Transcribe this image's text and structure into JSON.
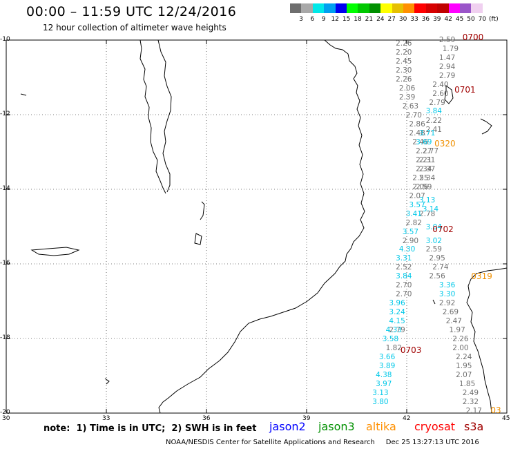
{
  "title": "00:00 – 11:59 UTC 12/24/2016",
  "subtitle": "12 hour collection of altimeter wave heights",
  "colorbar": {
    "colors": [
      "#6e6e6e",
      "#a8a8a8",
      "#00e8e8",
      "#00a0f0",
      "#0000f0",
      "#00ff00",
      "#00c800",
      "#009000",
      "#ffff00",
      "#e6c000",
      "#ff9000",
      "#ff0000",
      "#d60000",
      "#c00000",
      "#ff00ff",
      "#9a55c9",
      "#f0d0f0",
      "#ffffff"
    ],
    "labels": [
      "3",
      "6",
      "9",
      "12",
      "15",
      "18",
      "21",
      "24",
      "27",
      "30",
      "33",
      "36",
      "39",
      "42",
      "45",
      "50",
      "70",
      "(ft)"
    ]
  },
  "axes": {
    "lat_labels": [
      "-10",
      "-12",
      "-14",
      "-16",
      "-18",
      "-20"
    ],
    "lon_labels": [
      "30",
      "33",
      "36",
      "39",
      "42",
      "45"
    ]
  },
  "wave_values": {
    "jason3_column_a": [
      {
        "lat": -10.1,
        "lon": 41.96,
        "v": "2.26"
      },
      {
        "lat": -10.34,
        "lon": 41.96,
        "v": "2.20"
      },
      {
        "lat": -10.58,
        "lon": 41.96,
        "v": "2.45"
      },
      {
        "lat": -10.82,
        "lon": 41.96,
        "v": "2.30"
      },
      {
        "lat": -11.06,
        "lon": 41.96,
        "v": "2.26"
      },
      {
        "lat": -11.3,
        "lon": 42.06,
        "v": "2.06"
      },
      {
        "lat": -11.54,
        "lon": 42.06,
        "v": "2.39"
      },
      {
        "lat": -11.78,
        "lon": 42.16,
        "v": "2.63"
      },
      {
        "lat": -12.02,
        "lon": 42.26,
        "v": "2.70"
      },
      {
        "lat": -12.26,
        "lon": 42.36,
        "v": "2.86"
      },
      {
        "lat": -12.5,
        "lon": 42.36,
        "v": "2.48"
      },
      {
        "lat": -12.74,
        "lon": 42.46,
        "v": "2.46"
      },
      {
        "lat": -12.98,
        "lon": 42.56,
        "v": "2.27"
      },
      {
        "lat": -13.22,
        "lon": 42.56,
        "v": "2.21"
      },
      {
        "lat": -13.46,
        "lon": 42.56,
        "v": "2.34"
      },
      {
        "lat": -13.7,
        "lon": 42.46,
        "v": "2.55"
      },
      {
        "lat": -13.94,
        "lon": 42.46,
        "v": "2.06"
      },
      {
        "lat": -14.18,
        "lon": 42.36,
        "v": "2.07"
      },
      {
        "lat": -14.9,
        "lon": 42.26,
        "v": "2.82"
      },
      {
        "lat": -15.38,
        "lon": 42.16,
        "v": "2.90"
      },
      {
        "lat": -16.1,
        "lon": 41.96,
        "v": "2.52"
      },
      {
        "lat": -16.58,
        "lon": 41.96,
        "v": "2.70"
      },
      {
        "lat": -16.82,
        "lon": 41.96,
        "v": "2.70"
      },
      {
        "lat": -17.78,
        "lon": 41.76,
        "v": "2.79"
      },
      {
        "lat": -18.26,
        "lon": 41.66,
        "v": "1.82"
      }
    ],
    "jason3_column_b": [
      {
        "lat": -10.0,
        "lon": 43.26,
        "v": "2.59"
      },
      {
        "lat": -10.24,
        "lon": 43.36,
        "v": "1.79"
      },
      {
        "lat": -10.48,
        "lon": 43.26,
        "v": "1.47"
      },
      {
        "lat": -10.72,
        "lon": 43.26,
        "v": "2.94"
      },
      {
        "lat": -10.96,
        "lon": 43.26,
        "v": "2.79"
      },
      {
        "lat": -11.2,
        "lon": 43.06,
        "v": "2.40"
      },
      {
        "lat": -11.44,
        "lon": 43.06,
        "v": "2.60"
      },
      {
        "lat": -11.68,
        "lon": 42.96,
        "v": "2.79"
      },
      {
        "lat": -12.16,
        "lon": 42.86,
        "v": "2.22"
      },
      {
        "lat": -12.4,
        "lon": 42.86,
        "v": "2.41"
      },
      {
        "lat": -12.98,
        "lon": 42.76,
        "v": "2.77"
      },
      {
        "lat": -13.22,
        "lon": 42.66,
        "v": "2.31"
      },
      {
        "lat": -13.46,
        "lon": 42.66,
        "v": "2.37"
      },
      {
        "lat": -13.7,
        "lon": 42.66,
        "v": "2.34"
      },
      {
        "lat": -13.94,
        "lon": 42.56,
        "v": "2.59"
      },
      {
        "lat": -14.66,
        "lon": 42.66,
        "v": "2.78"
      },
      {
        "lat": -15.62,
        "lon": 42.86,
        "v": "2.59"
      },
      {
        "lat": -15.86,
        "lon": 42.96,
        "v": "2.95"
      },
      {
        "lat": -16.1,
        "lon": 43.06,
        "v": "2.74"
      },
      {
        "lat": -16.34,
        "lon": 42.96,
        "v": "2.56"
      },
      {
        "lat": -17.06,
        "lon": 43.26,
        "v": "2.92"
      },
      {
        "lat": -17.3,
        "lon": 43.36,
        "v": "2.69"
      },
      {
        "lat": -17.54,
        "lon": 43.46,
        "v": "2.47"
      },
      {
        "lat": -17.78,
        "lon": 43.56,
        "v": "1.97"
      },
      {
        "lat": -18.02,
        "lon": 43.66,
        "v": "2.26"
      },
      {
        "lat": -18.26,
        "lon": 43.66,
        "v": "2.00"
      },
      {
        "lat": -18.5,
        "lon": 43.76,
        "v": "2.24"
      },
      {
        "lat": -18.74,
        "lon": 43.76,
        "v": "1.95"
      },
      {
        "lat": -18.98,
        "lon": 43.76,
        "v": "2.07"
      },
      {
        "lat": -19.22,
        "lon": 43.86,
        "v": "1.85"
      },
      {
        "lat": -19.46,
        "lon": 43.96,
        "v": "2.49"
      },
      {
        "lat": -19.7,
        "lon": 43.96,
        "v": "2.32"
      },
      {
        "lat": -19.94,
        "lon": 44.06,
        "v": "2.17"
      }
    ],
    "jason2_column": [
      {
        "lat": -11.9,
        "lon": 42.86,
        "v": "3.84"
      },
      {
        "lat": -12.5,
        "lon": 42.66,
        "v": "3.71"
      },
      {
        "lat": -12.74,
        "lon": 42.56,
        "v": "3.69"
      },
      {
        "lat": -14.3,
        "lon": 42.66,
        "v": "3.13"
      },
      {
        "lat": -14.42,
        "lon": 42.36,
        "v": "3.57"
      },
      {
        "lat": -14.54,
        "lon": 42.76,
        "v": "3.14"
      },
      {
        "lat": -14.66,
        "lon": 42.26,
        "v": "3.41"
      },
      {
        "lat": -15.02,
        "lon": 42.86,
        "v": "3.04"
      },
      {
        "lat": -15.14,
        "lon": 42.16,
        "v": "3.57"
      },
      {
        "lat": -15.38,
        "lon": 42.86,
        "v": "3.02"
      },
      {
        "lat": -15.62,
        "lon": 42.06,
        "v": "4.30"
      },
      {
        "lat": -15.86,
        "lon": 41.96,
        "v": "3.31"
      },
      {
        "lat": -16.34,
        "lon": 41.96,
        "v": "3.84"
      },
      {
        "lat": -16.58,
        "lon": 43.26,
        "v": "3.36"
      },
      {
        "lat": -16.82,
        "lon": 43.26,
        "v": "3.30"
      },
      {
        "lat": -17.06,
        "lon": 41.76,
        "v": "3.96"
      },
      {
        "lat": -17.3,
        "lon": 41.76,
        "v": "3.24"
      },
      {
        "lat": -17.54,
        "lon": 41.76,
        "v": "4.15"
      },
      {
        "lat": -17.78,
        "lon": 41.66,
        "v": "4.33"
      },
      {
        "lat": -18.02,
        "lon": 41.56,
        "v": "3.58"
      },
      {
        "lat": -18.5,
        "lon": 41.46,
        "v": "3.66"
      },
      {
        "lat": -18.74,
        "lon": 41.46,
        "v": "3.89"
      },
      {
        "lat": -18.98,
        "lon": 41.36,
        "v": "4.38"
      },
      {
        "lat": -19.22,
        "lon": 41.36,
        "v": "3.97"
      },
      {
        "lat": -19.46,
        "lon": 41.26,
        "v": "3.13"
      },
      {
        "lat": -19.7,
        "lon": 41.26,
        "v": "3.80"
      }
    ]
  },
  "rev_labels": [
    {
      "text": "0700",
      "lat": -9.92,
      "lon": 43.96,
      "color": "#a00000"
    },
    {
      "text": "0701",
      "lat": -11.34,
      "lon": 43.72,
      "color": "#a00000"
    },
    {
      "text": "0320",
      "lat": -12.78,
      "lon": 43.12,
      "color": "#f09000"
    },
    {
      "text": "0702",
      "lat": -15.08,
      "lon": 43.06,
      "color": "#a00000"
    },
    {
      "text": "0319",
      "lat": -16.34,
      "lon": 44.22,
      "color": "#f09000"
    },
    {
      "text": "0703",
      "lat": -18.32,
      "lon": 42.1,
      "color": "#a00000"
    },
    {
      "text": "03",
      "lat": -19.92,
      "lon": 44.8,
      "color": "#f09000"
    }
  ],
  "note": "note:  1) Time is in UTC;  2) SWH is in feet",
  "satellites": [
    {
      "name": "jason2",
      "color": "#0000ff"
    },
    {
      "name": "jason3",
      "color": "#009000"
    },
    {
      "name": "altika",
      "color": "#ff9000"
    },
    {
      "name": "cryosat",
      "color": "#ff0000"
    },
    {
      "name": "s3a",
      "color": "#a00000"
    }
  ],
  "credit": "NOAA/NESDIS Center for Satellite Applications and Research     Dec 25 13:27:13 UTC 2016"
}
